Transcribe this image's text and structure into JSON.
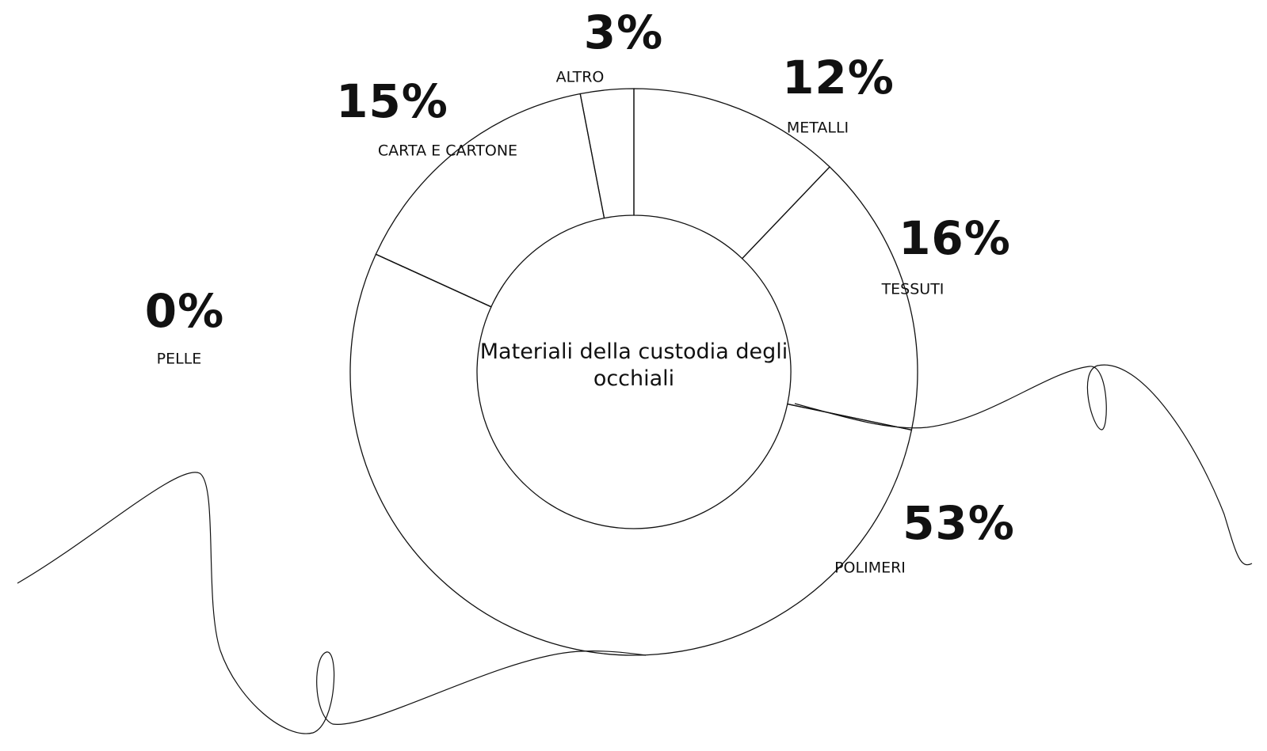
{
  "chart_data": {
    "type": "donut",
    "title": "Materiali della custodia degli occhiali",
    "categories": [
      "METALLI",
      "TESSUTI",
      "POLIMERI",
      "PELLE",
      "CARTA E CARTONE",
      "ALTRO"
    ],
    "values": [
      12,
      16,
      53,
      0,
      15,
      3
    ],
    "value_labels": [
      "12%",
      "16%",
      "53%",
      "0%",
      "15%",
      "3%"
    ],
    "color": "#111111"
  }
}
